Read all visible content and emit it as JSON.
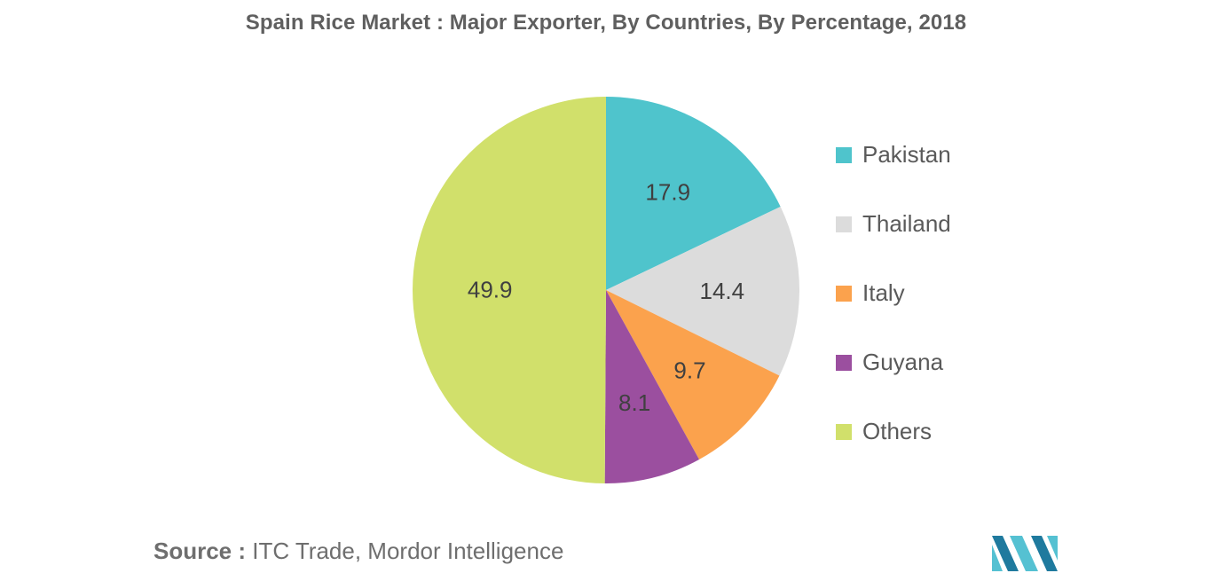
{
  "chart_data": {
    "type": "pie",
    "title": "Spain Rice Market : Major Exporter, By Countries, By Percentage, 2018",
    "categories": [
      "Pakistan",
      "Thailand",
      "Italy",
      "Guyana",
      "Others"
    ],
    "values": [
      17.9,
      14.4,
      9.7,
      8.1,
      49.9
    ],
    "data_labels": [
      "17.9",
      "14.4",
      "9.7",
      "8.1",
      "49.9"
    ],
    "colors": [
      "#4fc4cc",
      "#dcdcdc",
      "#fba24d",
      "#9b4f9f",
      "#d1e06b"
    ],
    "legend_placement": "right",
    "start_angle": "top, clockwise"
  },
  "source": {
    "key": "Source :",
    "text": " ITC Trade, Mordor Intelligence"
  },
  "logo": {
    "name": "mordor-intelligence-logo",
    "colors": [
      "#1f7a9e",
      "#55c1d2"
    ]
  }
}
